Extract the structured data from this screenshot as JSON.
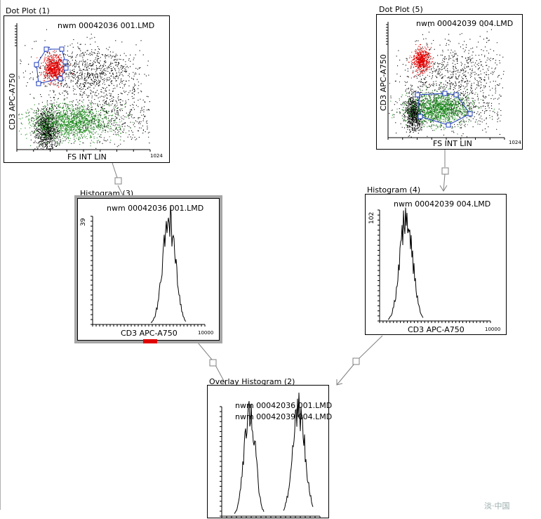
{
  "colors": {
    "gate_outline": "#1f3dbf",
    "population_red": "#e10000",
    "population_green": "#1a8a1a",
    "population_black": "#000000",
    "selection_marker": "#e00000",
    "connector": "#808080"
  },
  "panels": {
    "dot1": {
      "title": "Dot Plot (1)",
      "file": "nwm 00042036 001.LMD",
      "xlabel": "FS INT LIN",
      "ylabel": "CD3 APC-A750",
      "xmax_label": "1024"
    },
    "dot5": {
      "title": "Dot Plot (5)",
      "file": "nwm 00042039 004.LMD",
      "xlabel": "FS INT LIN",
      "ylabel": "CD3 APC-A750",
      "xmax_label": "1024"
    },
    "hist3": {
      "title": "Histogram (3)",
      "file": "nwm 00042036 001.LMD",
      "xlabel": "CD3 APC-A750",
      "ymax_label": "39",
      "xmax_label": "10000"
    },
    "hist4": {
      "title": "Histogram (4)",
      "file": "nwm 00042039 004.LMD",
      "xlabel": "CD3 APC-A750",
      "ymax_label": "102",
      "xmax_label": "10000"
    },
    "overlay2": {
      "title": "Overlay Histogram (2)",
      "files": [
        "nwm 00042036 001.LMD",
        "nwm 00042039 004.LMD"
      ]
    }
  },
  "watermark": "淡·中国",
  "chart_data": [
    {
      "type": "scatter",
      "title": "Dot Plot (1)",
      "xlabel": "FS INT LIN",
      "ylabel": "CD3 APC-A750",
      "xlim": [
        0,
        1024
      ],
      "gated": true,
      "populations": [
        {
          "color": "red",
          "description_value": "CD3 high",
          "center": [
            110,
            780
          ]
        },
        {
          "color": "green",
          "center": [
            290,
            190
          ]
        },
        {
          "color": "black",
          "center": [
            90,
            170
          ]
        }
      ]
    },
    {
      "type": "scatter",
      "title": "Dot Plot (5)",
      "xlabel": "FS INT LIN",
      "ylabel": "CD3 APC-A750",
      "xlim": [
        0,
        1024
      ],
      "gated": true,
      "populations": [
        {
          "color": "red",
          "center": [
            130,
            780
          ]
        },
        {
          "color": "green",
          "center": [
            240,
            270
          ]
        },
        {
          "color": "black",
          "center": [
            80,
            240
          ]
        }
      ]
    },
    {
      "type": "line",
      "title": "Histogram (3)",
      "xlabel": "CD3 APC-A750",
      "ylim": [
        0,
        39
      ],
      "peak_x_fraction": 0.72,
      "peak_y": 39
    },
    {
      "type": "line",
      "title": "Histogram (4)",
      "xlabel": "CD3 APC-A750",
      "ylim": [
        0,
        102
      ],
      "peak_x_fraction": 0.28,
      "peak_y": 102
    },
    {
      "type": "line",
      "title": "Overlay Histogram (2)",
      "series": [
        {
          "name": "nwm 00042036 001.LMD"
        },
        {
          "name": "nwm 00042039 004.LMD"
        }
      ]
    }
  ]
}
